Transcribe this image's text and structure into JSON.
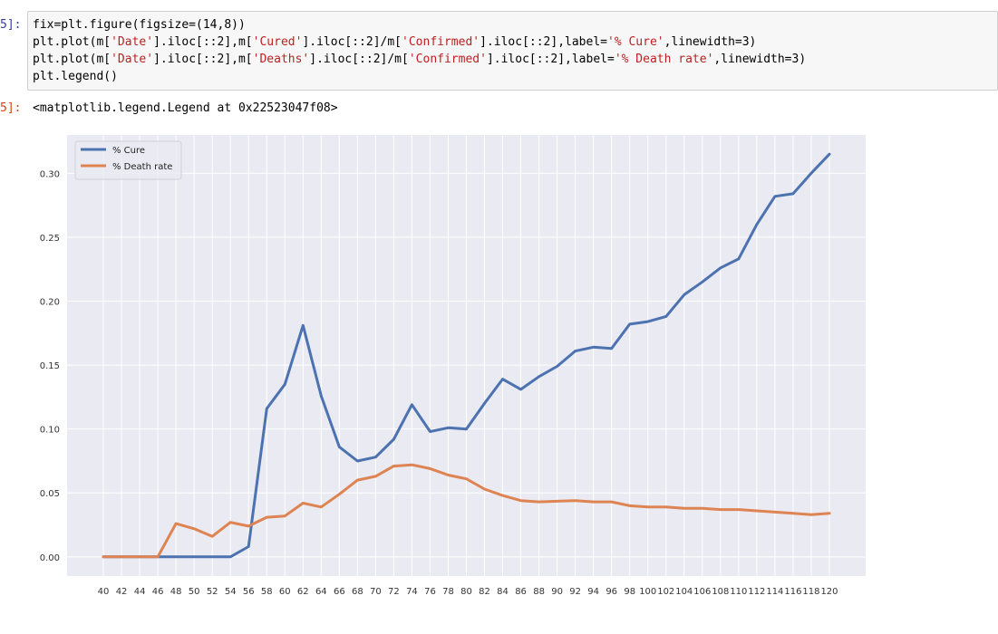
{
  "cell": {
    "in_prompt": "5]:",
    "out_prompt": "5]:",
    "code": [
      [
        {
          "t": "fix=plt.figure(figsize=(14,8))"
        }
      ],
      [
        {
          "t": "plt.plot(m["
        },
        {
          "t": "'Date'",
          "s": 1
        },
        {
          "t": "].iloc[::2],m["
        },
        {
          "t": "'Cured'",
          "s": 1
        },
        {
          "t": "].iloc[::2]/m["
        },
        {
          "t": "'Confirmed'",
          "s": 1
        },
        {
          "t": "].iloc[::2],label="
        },
        {
          "t": "'% Cure'",
          "s": 1
        },
        {
          "t": ",linewidth=3)"
        }
      ],
      [
        {
          "t": "plt.plot(m["
        },
        {
          "t": "'Date'",
          "s": 1
        },
        {
          "t": "].iloc[::2],m["
        },
        {
          "t": "'Deaths'",
          "s": 1
        },
        {
          "t": "].iloc[::2]/m["
        },
        {
          "t": "'Confirmed'",
          "s": 1
        },
        {
          "t": "].iloc[::2],label="
        },
        {
          "t": "'% Death rate'",
          "s": 1
        },
        {
          "t": ",linewidth=3)"
        }
      ],
      [
        {
          "t": "plt.legend()"
        }
      ]
    ],
    "output": "<matplotlib.legend.Legend at 0x22523047f08>"
  },
  "colors": {
    "plot_bg": "#eaeaf2",
    "grid": "#ffffff",
    "cure": "#4c72b0",
    "death": "#dd8452"
  },
  "chart_data": {
    "type": "line",
    "title": "",
    "xlabel": "",
    "ylabel": "",
    "grid": true,
    "legend_position": "top-left",
    "xlim": [
      36,
      124
    ],
    "ylim": [
      -0.015,
      0.33
    ],
    "x_ticks": [
      40,
      42,
      44,
      46,
      48,
      50,
      52,
      54,
      56,
      58,
      60,
      62,
      64,
      66,
      68,
      70,
      72,
      74,
      76,
      78,
      80,
      82,
      84,
      86,
      88,
      90,
      92,
      94,
      96,
      98,
      100,
      102,
      104,
      106,
      108,
      110,
      112,
      114,
      116,
      118,
      120
    ],
    "y_ticks": [
      "0.00",
      "0.05",
      "0.10",
      "0.15",
      "0.20",
      "0.25",
      "0.30"
    ],
    "x": [
      40,
      42,
      44,
      46,
      48,
      50,
      52,
      54,
      56,
      58,
      60,
      62,
      64,
      66,
      68,
      70,
      72,
      74,
      76,
      78,
      80,
      82,
      84,
      86,
      88,
      90,
      92,
      94,
      96,
      98,
      100,
      102,
      104,
      106,
      108,
      110,
      112,
      114,
      116,
      118,
      120
    ],
    "series": [
      {
        "name": "% Cure",
        "values": [
          0,
          0,
          0,
          0,
          0,
          0,
          0,
          0,
          0.008,
          0.116,
          0.135,
          0.181,
          0.126,
          0.086,
          0.075,
          0.078,
          0.092,
          0.119,
          0.098,
          0.101,
          0.1,
          0.12,
          0.139,
          0.131,
          0.141,
          0.149,
          0.161,
          0.164,
          0.163,
          0.182,
          0.184,
          0.188,
          0.205,
          0.215,
          0.226,
          0.233,
          0.26,
          0.282,
          0.284,
          0.3,
          0.315
        ]
      },
      {
        "name": "% Death rate",
        "values": [
          0,
          0,
          0,
          0,
          0.026,
          0.022,
          0.016,
          0.027,
          0.024,
          0.031,
          0.032,
          0.042,
          0.039,
          0.049,
          0.06,
          0.063,
          0.071,
          0.072,
          0.069,
          0.064,
          0.061,
          0.053,
          0.048,
          0.044,
          0.043,
          0.0435,
          0.044,
          0.043,
          0.043,
          0.04,
          0.039,
          0.039,
          0.038,
          0.038,
          0.037,
          0.037,
          0.036,
          0.035,
          0.034,
          0.033,
          0.034
        ]
      }
    ]
  }
}
